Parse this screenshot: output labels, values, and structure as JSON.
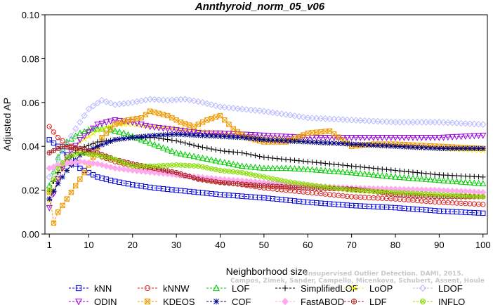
{
  "chart_data": {
    "type": "line",
    "title": "Annthyroid_norm_05_v06",
    "xlabel": "Neighborhood size",
    "ylabel": "Adjusted AP",
    "xlim": [
      0,
      101
    ],
    "ylim": [
      0,
      0.1
    ],
    "x_ticks": [
      1,
      10,
      20,
      30,
      40,
      50,
      60,
      70,
      80,
      90,
      100
    ],
    "x_tick_labels": [
      "1",
      "10",
      "20",
      "30",
      "40",
      "50",
      "60",
      "70",
      "80",
      "90",
      "100"
    ],
    "y_ticks": [
      0,
      0.02,
      0.04,
      0.06,
      0.08,
      0.1
    ],
    "y_tick_labels": [
      "0.00",
      "0.02",
      "0.04",
      "0.06",
      "0.08",
      "0.10"
    ],
    "grid": false,
    "legend_position": "bottom",
    "watermark": [
      "Campos, Zimek, Sander, Campello, Micenkova, Schubert, Assent, Houle",
      "Unsupervised Outlier Detection. DAMI, 2015."
    ],
    "series": [
      {
        "name": "kNN",
        "color": "#0000dd",
        "marker": "square",
        "points": [
          [
            1,
            0.043
          ],
          [
            3,
            0.04
          ],
          [
            5,
            0.036
          ],
          [
            8,
            0.03
          ],
          [
            12,
            0.026
          ],
          [
            16,
            0.024
          ],
          [
            20,
            0.0225
          ],
          [
            25,
            0.021
          ],
          [
            30,
            0.02
          ],
          [
            40,
            0.018
          ],
          [
            50,
            0.0165
          ],
          [
            60,
            0.0145
          ],
          [
            70,
            0.013
          ],
          [
            80,
            0.012
          ],
          [
            90,
            0.0105
          ],
          [
            100,
            0.0095
          ]
        ]
      },
      {
        "name": "kNNW",
        "color": "#dd2222",
        "marker": "circle",
        "points": [
          [
            1,
            0.049
          ],
          [
            3,
            0.044
          ],
          [
            5,
            0.041
          ],
          [
            8,
            0.038
          ],
          [
            12,
            0.036
          ],
          [
            16,
            0.033
          ],
          [
            20,
            0.031
          ],
          [
            25,
            0.029
          ],
          [
            30,
            0.027
          ],
          [
            40,
            0.024
          ],
          [
            50,
            0.021
          ],
          [
            60,
            0.019
          ],
          [
            70,
            0.017
          ],
          [
            80,
            0.016
          ],
          [
            90,
            0.0145
          ],
          [
            100,
            0.0135
          ]
        ]
      },
      {
        "name": "LOF",
        "color": "#00cc00",
        "marker": "triangle-up",
        "points": [
          [
            1,
            0.022
          ],
          [
            3,
            0.035
          ],
          [
            5,
            0.042
          ],
          [
            8,
            0.046
          ],
          [
            11,
            0.048
          ],
          [
            14,
            0.048
          ],
          [
            18,
            0.046
          ],
          [
            22,
            0.043
          ],
          [
            26,
            0.04
          ],
          [
            30,
            0.037
          ],
          [
            35,
            0.035
          ],
          [
            40,
            0.033
          ],
          [
            45,
            0.031
          ],
          [
            50,
            0.03
          ],
          [
            55,
            0.03
          ],
          [
            60,
            0.0295
          ],
          [
            70,
            0.028
          ],
          [
            80,
            0.026
          ],
          [
            90,
            0.0245
          ],
          [
            100,
            0.023
          ]
        ]
      },
      {
        "name": "SimplifiedLOF",
        "color": "#000000",
        "marker": "plus",
        "points": [
          [
            1,
            0.02
          ],
          [
            3,
            0.028
          ],
          [
            5,
            0.034
          ],
          [
            8,
            0.039
          ],
          [
            12,
            0.042
          ],
          [
            16,
            0.043
          ],
          [
            20,
            0.044
          ],
          [
            25,
            0.044
          ],
          [
            30,
            0.0425
          ],
          [
            35,
            0.04
          ],
          [
            40,
            0.038
          ],
          [
            45,
            0.037
          ],
          [
            50,
            0.035
          ],
          [
            60,
            0.033
          ],
          [
            70,
            0.031
          ],
          [
            80,
            0.029
          ],
          [
            90,
            0.027
          ],
          [
            100,
            0.026
          ]
        ]
      },
      {
        "name": "LoOP",
        "color": "#eeee00",
        "marker": "x",
        "points": [
          [
            1,
            0.015
          ],
          [
            3,
            0.025
          ],
          [
            5,
            0.034
          ],
          [
            8,
            0.042
          ],
          [
            12,
            0.047
          ],
          [
            16,
            0.05
          ],
          [
            20,
            0.05
          ],
          [
            25,
            0.049
          ],
          [
            30,
            0.048
          ],
          [
            35,
            0.047
          ],
          [
            40,
            0.046
          ],
          [
            45,
            0.045
          ],
          [
            50,
            0.044
          ],
          [
            60,
            0.042
          ],
          [
            70,
            0.041
          ],
          [
            80,
            0.04
          ],
          [
            90,
            0.039
          ],
          [
            100,
            0.038
          ]
        ]
      },
      {
        "name": "LDOF",
        "color": "#b8b8ff",
        "marker": "diamond",
        "points": [
          [
            1,
            0.026
          ],
          [
            4,
            0.038
          ],
          [
            7,
            0.048
          ],
          [
            10,
            0.057
          ],
          [
            13,
            0.061
          ],
          [
            16,
            0.059
          ],
          [
            20,
            0.06
          ],
          [
            24,
            0.0615
          ],
          [
            28,
            0.061
          ],
          [
            32,
            0.0615
          ],
          [
            36,
            0.06
          ],
          [
            40,
            0.058
          ],
          [
            45,
            0.057
          ],
          [
            50,
            0.056
          ],
          [
            60,
            0.053
          ],
          [
            70,
            0.052
          ],
          [
            80,
            0.051
          ],
          [
            90,
            0.051
          ],
          [
            100,
            0.05
          ]
        ]
      },
      {
        "name": "ODIN",
        "color": "#9900dd",
        "marker": "triangle-down",
        "points": [
          [
            1,
            0.012
          ],
          [
            3,
            0.025
          ],
          [
            5,
            0.035
          ],
          [
            8,
            0.043
          ],
          [
            12,
            0.05
          ],
          [
            16,
            0.052
          ],
          [
            20,
            0.051
          ],
          [
            24,
            0.049
          ],
          [
            28,
            0.048
          ],
          [
            32,
            0.047
          ],
          [
            36,
            0.046
          ],
          [
            40,
            0.046
          ],
          [
            50,
            0.045
          ],
          [
            60,
            0.044
          ],
          [
            70,
            0.044
          ],
          [
            80,
            0.044
          ],
          [
            90,
            0.044
          ],
          [
            100,
            0.045
          ]
        ]
      },
      {
        "name": "KDEOS",
        "color": "#ee9900",
        "marker": "square-x",
        "points": [
          [
            1,
            0.019
          ],
          [
            2,
            0.005
          ],
          [
            3,
            0.01
          ],
          [
            5,
            0.016
          ],
          [
            7,
            0.022
          ],
          [
            9,
            0.028
          ],
          [
            11,
            0.035
          ],
          [
            13,
            0.044
          ],
          [
            16,
            0.05
          ],
          [
            19,
            0.052
          ],
          [
            22,
            0.053
          ],
          [
            24,
            0.056
          ],
          [
            26,
            0.055
          ],
          [
            28,
            0.054
          ],
          [
            31,
            0.051
          ],
          [
            34,
            0.049
          ],
          [
            37,
            0.052
          ],
          [
            40,
            0.054
          ],
          [
            43,
            0.048
          ],
          [
            46,
            0.044
          ],
          [
            50,
            0.042
          ],
          [
            55,
            0.042
          ],
          [
            60,
            0.046
          ],
          [
            65,
            0.047
          ],
          [
            70,
            0.04
          ],
          [
            75,
            0.041
          ],
          [
            80,
            0.041
          ],
          [
            90,
            0.04
          ],
          [
            100,
            0.039
          ]
        ]
      },
      {
        "name": "COF",
        "color": "#000088",
        "marker": "asterisk",
        "points": [
          [
            1,
            0.016
          ],
          [
            3,
            0.023
          ],
          [
            5,
            0.029
          ],
          [
            8,
            0.036
          ],
          [
            12,
            0.04
          ],
          [
            16,
            0.043
          ],
          [
            20,
            0.044
          ],
          [
            25,
            0.045
          ],
          [
            30,
            0.0455
          ],
          [
            35,
            0.045
          ],
          [
            40,
            0.0445
          ],
          [
            45,
            0.044
          ],
          [
            50,
            0.043
          ],
          [
            60,
            0.042
          ],
          [
            70,
            0.041
          ],
          [
            80,
            0.04
          ],
          [
            90,
            0.039
          ],
          [
            100,
            0.039
          ]
        ]
      },
      {
        "name": "FastABOD",
        "color": "#ffaaee",
        "marker": "diamond-fill",
        "points": [
          [
            1,
            0.03
          ],
          [
            4,
            0.032
          ],
          [
            8,
            0.033
          ],
          [
            12,
            0.032
          ],
          [
            16,
            0.03
          ],
          [
            20,
            0.029
          ],
          [
            25,
            0.028
          ],
          [
            30,
            0.027
          ],
          [
            35,
            0.026
          ],
          [
            40,
            0.025
          ],
          [
            50,
            0.0235
          ],
          [
            60,
            0.022
          ],
          [
            70,
            0.021
          ],
          [
            80,
            0.0205
          ],
          [
            90,
            0.02
          ],
          [
            100,
            0.019
          ]
        ]
      },
      {
        "name": "LDF",
        "color": "#aa2222",
        "marker": "circle-plus",
        "points": [
          [
            1,
            0.037
          ],
          [
            4,
            0.04
          ],
          [
            8,
            0.039
          ],
          [
            12,
            0.037
          ],
          [
            16,
            0.034
          ],
          [
            20,
            0.032
          ],
          [
            25,
            0.03
          ],
          [
            30,
            0.028
          ],
          [
            35,
            0.025
          ],
          [
            40,
            0.0235
          ],
          [
            50,
            0.022
          ],
          [
            60,
            0.021
          ],
          [
            70,
            0.0205
          ],
          [
            75,
            0.0195
          ],
          [
            80,
            0.018
          ],
          [
            90,
            0.017
          ],
          [
            100,
            0.017
          ]
        ]
      },
      {
        "name": "INFLO",
        "color": "#88dd00",
        "marker": "circle-x",
        "points": [
          [
            1,
            0.02
          ],
          [
            3,
            0.03
          ],
          [
            5,
            0.035
          ],
          [
            8,
            0.037
          ],
          [
            12,
            0.036
          ],
          [
            16,
            0.034
          ],
          [
            20,
            0.031
          ],
          [
            25,
            0.031
          ],
          [
            30,
            0.0315
          ],
          [
            35,
            0.031
          ],
          [
            40,
            0.029
          ],
          [
            45,
            0.028
          ],
          [
            50,
            0.026
          ],
          [
            55,
            0.024
          ],
          [
            60,
            0.0225
          ],
          [
            70,
            0.02
          ],
          [
            80,
            0.019
          ],
          [
            90,
            0.018
          ],
          [
            100,
            0.017
          ]
        ]
      }
    ]
  }
}
